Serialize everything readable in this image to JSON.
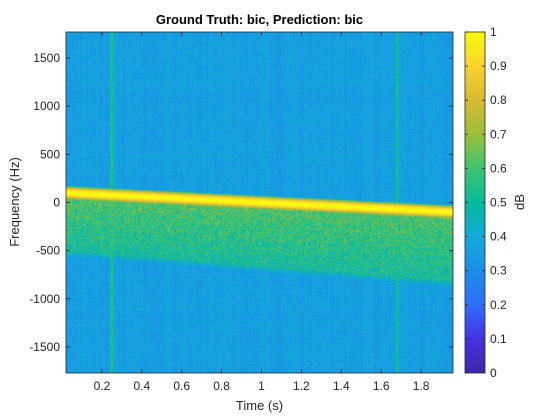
{
  "chart_data": {
    "type": "heatmap",
    "title": "Ground Truth: bic, Prediction: bic",
    "xlabel": "Time (s)",
    "ylabel": "Frequency (Hz)",
    "xlim": [
      0.02,
      1.96
    ],
    "ylim": [
      -1770,
      1770
    ],
    "xticks": [
      0.2,
      0.4,
      0.6,
      0.8,
      1,
      1.2,
      1.4,
      1.6,
      1.8
    ],
    "xtick_labels": [
      "0.2",
      "0.4",
      "0.6",
      "0.8",
      "1",
      "1.2",
      "1.4",
      "1.6",
      "1.8"
    ],
    "yticks": [
      -1500,
      -1000,
      -500,
      0,
      500,
      1000,
      1500
    ],
    "ytick_labels": [
      "-1500",
      "-1000",
      "-500",
      "0",
      "500",
      "1000",
      "1500"
    ],
    "colorbar": {
      "label": "dB",
      "limits": [
        0,
        1
      ],
      "ticks": [
        0,
        0.1,
        0.2,
        0.3,
        0.4,
        0.5,
        0.6,
        0.7,
        0.8,
        0.9,
        1
      ],
      "tick_labels": [
        "0",
        "0.1",
        "0.2",
        "0.3",
        "0.4",
        "0.5",
        "0.6",
        "0.7",
        "0.8",
        "0.9",
        "1"
      ],
      "colormap": "parula",
      "colors": [
        "#3e26a8",
        "#4433e0",
        "#2f6ffa",
        "#1a8ee8",
        "#14aadb",
        "#06ba9c",
        "#3fc471",
        "#9bbe3a",
        "#d9ba34",
        "#fbd22e",
        "#f9fb0e"
      ]
    },
    "features": {
      "background_level": 0.35,
      "main_band": {
        "x": [
          0.02,
          1.96
        ],
        "freq": [
          100,
          -100
        ],
        "level": 1.0
      },
      "noise_region": {
        "x": [
          0.02,
          1.96
        ],
        "upper_freq": [
          80,
          -80
        ],
        "lower_freq": [
          -550,
          -880
        ],
        "level": 0.62
      },
      "vertical_bands": [
        {
          "x": 0.25,
          "level": 0.6
        },
        {
          "x": 1.68,
          "level": 0.57
        }
      ]
    }
  }
}
